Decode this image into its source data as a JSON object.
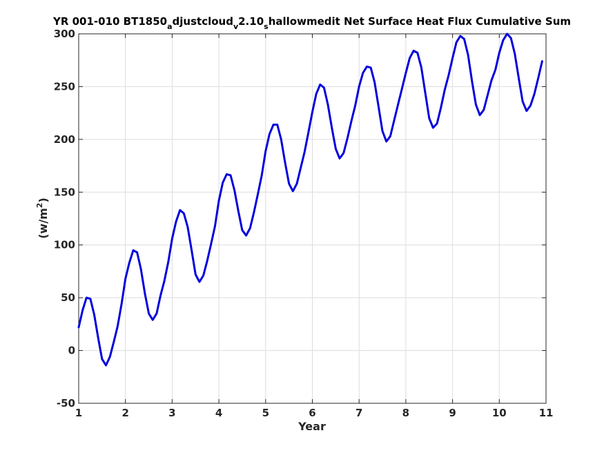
{
  "chart_data": {
    "type": "line",
    "title_parts": [
      {
        "text": "YR 001-010 BT1850",
        "sub": false
      },
      {
        "text": "a",
        "sub": true
      },
      {
        "text": "djustcloud",
        "sub": false
      },
      {
        "text": "v",
        "sub": true
      },
      {
        "text": "2.10",
        "sub": false
      },
      {
        "text": "s",
        "sub": true
      },
      {
        "text": "hallowmedit Net Surface Heat Flux  Cumulative Sum",
        "sub": false
      }
    ],
    "xlabel": "Year",
    "ylabel_main": "(w/m",
    "ylabel_sup": "2",
    "ylabel_close": ")",
    "xlim": [
      1,
      11
    ],
    "ylim": [
      -50,
      300
    ],
    "xticks": [
      1,
      2,
      3,
      4,
      5,
      6,
      7,
      8,
      9,
      10,
      11
    ],
    "yticks": [
      -50,
      0,
      50,
      100,
      150,
      200,
      250,
      300
    ],
    "grid": true,
    "line_color": "#0000dd",
    "series": [
      {
        "x": [
          1.0,
          1.083,
          1.167,
          1.25,
          1.333,
          1.417,
          1.5,
          1.583,
          1.667,
          1.75,
          1.833,
          1.917,
          2.0,
          2.083,
          2.167,
          2.25,
          2.333,
          2.417,
          2.5,
          2.583,
          2.667,
          2.75,
          2.833,
          2.917,
          3.0,
          3.083,
          3.167,
          3.25,
          3.333,
          3.417,
          3.5,
          3.583,
          3.667,
          3.75,
          3.833,
          3.917,
          4.0,
          4.083,
          4.167,
          4.25,
          4.333,
          4.417,
          4.5,
          4.583,
          4.667,
          4.75,
          4.833,
          4.917,
          5.0,
          5.083,
          5.167,
          5.25,
          5.333,
          5.417,
          5.5,
          5.583,
          5.667,
          5.75,
          5.833,
          5.917,
          6.0,
          6.083,
          6.167,
          6.25,
          6.333,
          6.417,
          6.5,
          6.583,
          6.667,
          6.75,
          6.833,
          6.917,
          7.0,
          7.083,
          7.167,
          7.25,
          7.333,
          7.417,
          7.5,
          7.583,
          7.667,
          7.75,
          7.833,
          7.917,
          8.0,
          8.083,
          8.167,
          8.25,
          8.333,
          8.417,
          8.5,
          8.583,
          8.667,
          8.75,
          8.833,
          8.917,
          9.0,
          9.083,
          9.167,
          9.25,
          9.333,
          9.417,
          9.5,
          9.583,
          9.667,
          9.75,
          9.833,
          9.917,
          10.0,
          10.083,
          10.167,
          10.25,
          10.333,
          10.417,
          10.5,
          10.583,
          10.667,
          10.75,
          10.833,
          10.917
        ],
        "y": [
          22,
          38,
          50,
          49,
          34,
          12,
          -8,
          -14,
          -6,
          8,
          23,
          44,
          68,
          83,
          95,
          93,
          77,
          54,
          35,
          29,
          35,
          52,
          66,
          84,
          106,
          122,
          133,
          130,
          117,
          95,
          72,
          65,
          71,
          85,
          101,
          118,
          142,
          159,
          167,
          166,
          152,
          132,
          114,
          109,
          116,
          131,
          148,
          166,
          189,
          205,
          214,
          214,
          200,
          178,
          158,
          151,
          158,
          173,
          188,
          207,
          226,
          243,
          252,
          249,
          233,
          211,
          191,
          182,
          187,
          201,
          217,
          232,
          250,
          263,
          269,
          268,
          254,
          231,
          208,
          198,
          203,
          218,
          233,
          248,
          263,
          277,
          284,
          282,
          268,
          244,
          220,
          211,
          215,
          230,
          247,
          261,
          277,
          292,
          298,
          295,
          280,
          255,
          233,
          223,
          228,
          242,
          256,
          266,
          282,
          294,
          300,
          296,
          281,
          258,
          236,
          227,
          232,
          243,
          258,
          274
        ]
      }
    ]
  }
}
